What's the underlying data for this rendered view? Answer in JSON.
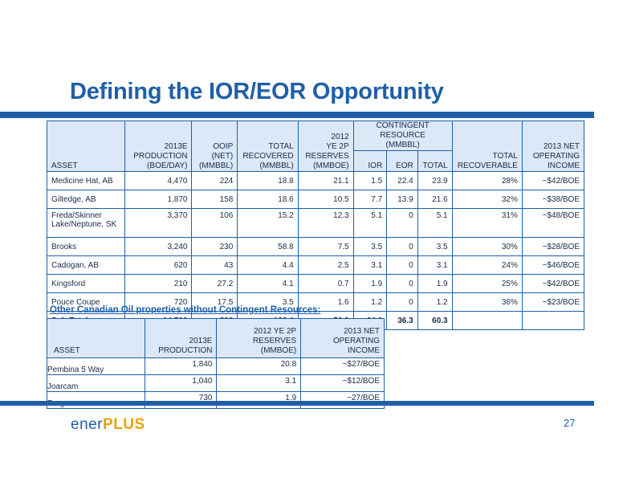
{
  "title": "Defining the IOR/EOR Opportunity",
  "main_table": {
    "headers": {
      "asset": "ASSET",
      "production_l1": "2013E",
      "production_l2": "PRODUCTION",
      "production_l3": "(BOE/DAY)",
      "ooip_l1": "OOIP",
      "ooip_l2": "(NET)",
      "ooip_l3": "(MMBBL)",
      "total_rec_l1": "TOTAL",
      "total_rec_l2": "RECOVERED",
      "total_rec_l3": "(MMBBL)",
      "reserves_l1": "2012",
      "reserves_l2": "YE 2P",
      "reserves_l3": "RESERVES",
      "reserves_l4": "(MMBOE)",
      "contingent_l1": "CONTINGENT RESOURCE",
      "contingent_l2": "(MMBBL)",
      "ior": "IOR",
      "eor": "EOR",
      "total": "TOTAL",
      "total_recoverable_l1": "TOTAL",
      "total_recoverable_l2": "RECOVERABLE",
      "income_l1": "2013 NET",
      "income_l2": "OPERATING",
      "income_l3": "INCOME"
    },
    "rows": [
      {
        "asset": "Medicine Hat, AB",
        "production": "4,470",
        "ooip": "224",
        "total_recovered": "18.8",
        "reserves": "21.1",
        "ior": "1.5",
        "eor": "22.4",
        "total": "23.9",
        "total_recoverable": "28%",
        "income": "~$42/BOE"
      },
      {
        "asset": "Giltedge, AB",
        "production": "1,870",
        "ooip": "158",
        "total_recovered": "18.6",
        "reserves": "10.5",
        "ior": "7.7",
        "eor": "13.9",
        "total": "21.6",
        "total_recoverable": "32%",
        "income": "~$38/BOE"
      },
      {
        "asset_l1": "Freda/Skinner",
        "asset_l2": "Lake/Neptune, SK",
        "production": "3,370",
        "ooip": "106",
        "total_recovered": "15.2",
        "reserves": "12.3",
        "ior": "5.1",
        "eor": "0",
        "total": "5.1",
        "total_recoverable": "31%",
        "income": "~$48/BOE"
      },
      {
        "asset": "Brooks",
        "production": "3,240",
        "ooip": "230",
        "total_recovered": "58.8",
        "reserves": "7.5",
        "ior": "3.5",
        "eor": "0",
        "total": "3.5",
        "total_recoverable": "30%",
        "income": "~$28/BOE"
      },
      {
        "asset": "Cadogan, AB",
        "production": "620",
        "ooip": "43",
        "total_recovered": "4.4",
        "reserves": "2.5",
        "ior": "3.1",
        "eor": "0",
        "total": "3.1",
        "total_recoverable": "24%",
        "income": "~$46/BOE"
      },
      {
        "asset": "Kingsford",
        "production": "210",
        "ooip": "27.2",
        "total_recovered": "4.1",
        "reserves": "0.7",
        "ior": "1.9",
        "eor": "0",
        "total": "1.9",
        "total_recoverable": "25%",
        "income": "~$42/BOE"
      },
      {
        "asset": "Pouce Coupe",
        "production": "720",
        "ooip": "17.5",
        "total_recovered": "3.5",
        "reserves": "1.6",
        "ior": "1.2",
        "eor": "0",
        "total": "1.2",
        "total_recoverable": "36%",
        "income": "~$23/BOE"
      }
    ],
    "subtotal": {
      "asset": "Sub-Total",
      "production": "14,500",
      "ooip": "806",
      "total_recovered": "123.4",
      "reserves": "56.2",
      "ior": "24.0",
      "eor": "36.3",
      "total": "60.3"
    }
  },
  "secondary": {
    "heading": "Other Canadian Oil properties without Contingent Resources:",
    "headers": {
      "asset": "ASSET",
      "production_l1": "2013E",
      "production_l2": "PRODUCTION",
      "reserves_l1": "2012  YE 2P",
      "reserves_l2": "RESERVES",
      "reserves_l3": "(MMBOE)",
      "income_l1": "2013 NET",
      "income_l2": "OPERATING",
      "income_l3": "INCOME"
    },
    "rows": [
      {
        "asset": "Pembina 5 Way",
        "production": "1,840",
        "reserves": "20.8",
        "income": "~$27/BOE"
      },
      {
        "asset": "Joarcam",
        "production": "1,040",
        "reserves": "3.1",
        "income": "~$12/BOE"
      },
      {
        "asset": "Progress",
        "production": "730",
        "reserves": "1.9",
        "income": "~27/BOE"
      }
    ]
  },
  "logo": {
    "part1": "ener",
    "part2": "PLUS"
  },
  "page_number": "27",
  "colors": {
    "brand_blue": "#1f5fa8",
    "header_fill": "#dce8f7",
    "logo_gold": "#e8a20f"
  }
}
